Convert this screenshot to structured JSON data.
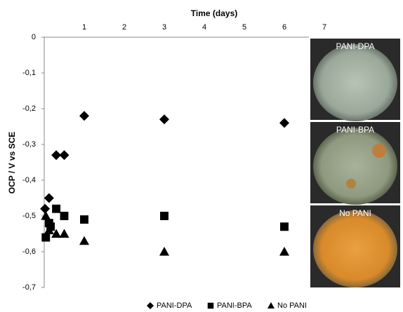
{
  "chart_data": {
    "type": "scatter",
    "x_label": "Time (days)",
    "y_label": "OCP / V vs SCE",
    "xlim": [
      0,
      7.5
    ],
    "xticks": [
      1,
      2,
      3,
      4,
      5,
      6,
      7
    ],
    "ylim": [
      -0.7,
      0
    ],
    "yticks": [
      {
        "value": -0.7,
        "label": "-0,7"
      },
      {
        "value": -0.6,
        "label": "-0,6"
      },
      {
        "value": -0.5,
        "label": "-0,5"
      },
      {
        "value": -0.4,
        "label": "-0,4"
      },
      {
        "value": -0.3,
        "label": "-0,3"
      },
      {
        "value": -0.2,
        "label": "-0,2"
      },
      {
        "value": -0.1,
        "label": "-0,1"
      },
      0
    ],
    "legend": "bottom",
    "series": [
      {
        "name": "PANI-DPA",
        "marker": "diamond",
        "color": "#000000",
        "x": [
          0.02,
          0.12,
          0.3,
          0.5,
          1,
          3,
          6
        ],
        "values": [
          -0.48,
          -0.45,
          -0.33,
          -0.33,
          -0.22,
          -0.23,
          -0.24
        ]
      },
      {
        "name": "PANI-BPA",
        "marker": "square",
        "color": "#000000",
        "x": [
          0.04,
          0.12,
          0.16,
          0.3,
          0.5,
          1,
          3,
          6
        ],
        "values": [
          -0.56,
          -0.52,
          -0.53,
          -0.48,
          -0.5,
          -0.51,
          -0.5,
          -0.53
        ]
      },
      {
        "name": "No PANI",
        "marker": "triangle",
        "color": "#000000",
        "x": [
          0.04,
          0.12,
          0.3,
          0.5,
          1,
          3,
          6
        ],
        "values": [
          -0.5,
          -0.54,
          -0.55,
          -0.55,
          -0.57,
          -0.6,
          -0.6
        ]
      }
    ],
    "annotations": [
      "PANI-DPA",
      "PANI-BPA",
      "No PANI"
    ]
  }
}
